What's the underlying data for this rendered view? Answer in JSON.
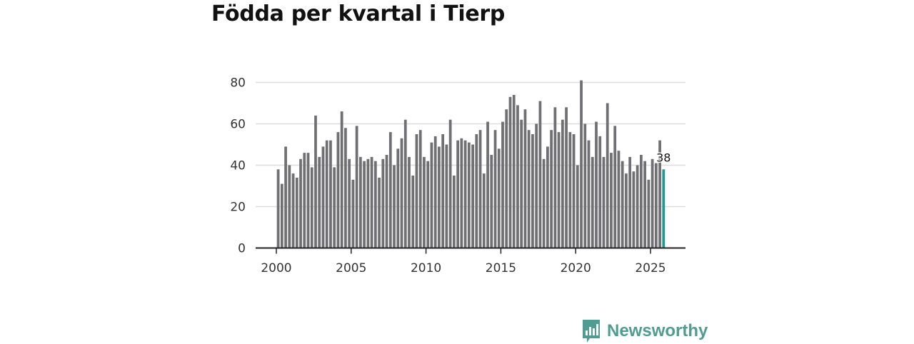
{
  "title": "Födda per kvartal i Tierp",
  "brand": {
    "name": "Newsworthy",
    "color": "#4f9c92"
  },
  "colors": {
    "bar": "#707074",
    "highlight": "#1a9b91",
    "grid": "#dddddd",
    "axis": "#222222"
  },
  "chart_data": {
    "type": "bar",
    "title": "Födda per kvartal i Tierp",
    "xlabel": "",
    "ylabel": "",
    "ylim": [
      0,
      80
    ],
    "y_ticks": [
      0,
      20,
      40,
      60,
      80
    ],
    "x_tick_labels": [
      "2000",
      "2005",
      "2010",
      "2015",
      "2020",
      "2025"
    ],
    "start_year": 2000,
    "periods_per_year": 4,
    "values": [
      38,
      31,
      49,
      40,
      36,
      34,
      43,
      46,
      46,
      39,
      64,
      44,
      49,
      52,
      52,
      39,
      56,
      66,
      58,
      43,
      33,
      59,
      44,
      42,
      43,
      44,
      42,
      34,
      43,
      45,
      56,
      40,
      48,
      53,
      62,
      44,
      35,
      55,
      57,
      44,
      42,
      51,
      54,
      49,
      55,
      50,
      62,
      35,
      52,
      53,
      52,
      51,
      50,
      55,
      57,
      36,
      61,
      45,
      57,
      48,
      61,
      67,
      73,
      74,
      69,
      62,
      67,
      57,
      55,
      60,
      71,
      43,
      49,
      57,
      68,
      56,
      62,
      68,
      56,
      55,
      40,
      81,
      60,
      52,
      44,
      61,
      54,
      44,
      70,
      46,
      59,
      47,
      42,
      36,
      44,
      37,
      40,
      45,
      42,
      33,
      43,
      41,
      52,
      38
    ],
    "highlight_index": 103,
    "data_label": "38"
  }
}
